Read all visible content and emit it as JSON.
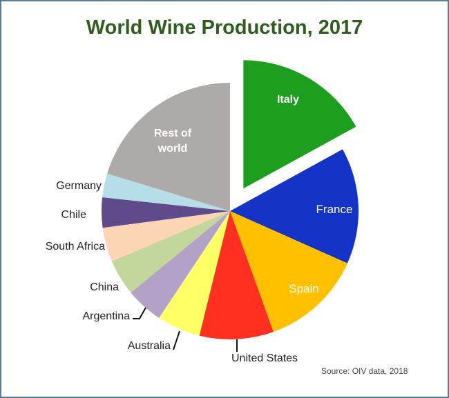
{
  "chart_data": {
    "type": "pie",
    "title": "World Wine Production, 2017",
    "source": "Source: OIV data, 2018",
    "start_angle": "12 o'clock",
    "direction": "clockwise",
    "exploded": [
      "Italy"
    ],
    "slices": [
      {
        "label": "Italy",
        "value": 42.5,
        "color": "#1e9e1e",
        "label_inside": true
      },
      {
        "label": "France",
        "value": 36.7,
        "color": "#1434c8",
        "label_inside": true
      },
      {
        "label": "Spain",
        "value": 32.1,
        "color": "#ffc000",
        "label_inside": true
      },
      {
        "label": "United States",
        "value": 23.3,
        "color": "#ff3020",
        "label_inside": false
      },
      {
        "label": "Australia",
        "value": 13.7,
        "color": "#ffff66",
        "label_inside": false
      },
      {
        "label": "Argentina",
        "value": 11.8,
        "color": "#b3a2c7",
        "label_inside": false
      },
      {
        "label": "China",
        "value": 11.4,
        "color": "#c3d69b",
        "label_inside": false
      },
      {
        "label": "South Africa",
        "value": 10.8,
        "color": "#fcd5b5",
        "label_inside": false
      },
      {
        "label": "Chile",
        "value": 9.5,
        "color": "#5f4b8b",
        "label_inside": false
      },
      {
        "label": "Germany",
        "value": 7.5,
        "color": "#b7dee8",
        "label_inside": false
      },
      {
        "label": "Rest of world",
        "value": 50.7,
        "color": "#aeaaaa",
        "label_inside": true
      }
    ]
  }
}
